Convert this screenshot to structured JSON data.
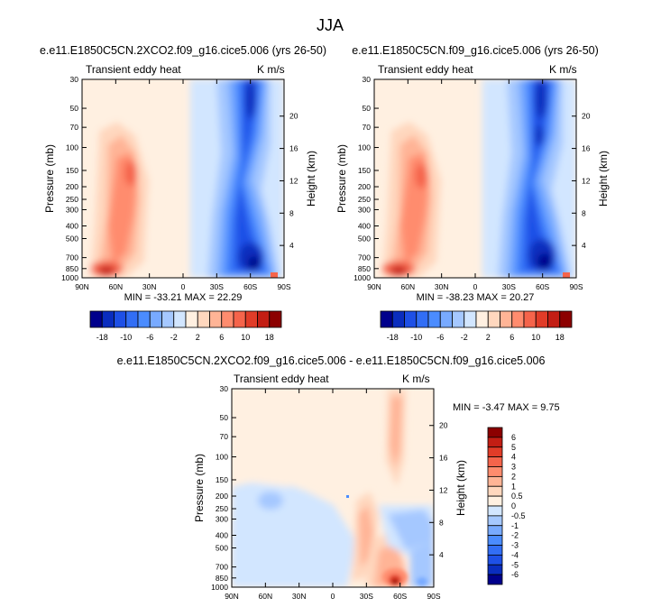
{
  "main_title": "JJA",
  "colors": {
    "map_17": [
      "#00008c",
      "#0a2dbe",
      "#1e50e6",
      "#326ef5",
      "#4b8cff",
      "#78aaff",
      "#a5c8ff",
      "#d2e6ff",
      "#fff0e1",
      "#ffd7be",
      "#ffb496",
      "#ff8c6e",
      "#f5644b",
      "#e13c28",
      "#c31e14",
      "#8c0000"
    ],
    "map_diff": [
      "#00008c",
      "#0a2dbe",
      "#1e50e6",
      "#326ef5",
      "#4b8cff",
      "#78aaff",
      "#a5c8ff",
      "#d2e6ff",
      "#fff0e1",
      "#ffd7be",
      "#ffb496",
      "#ff8c6e",
      "#f5644b",
      "#e13c28",
      "#c31e14",
      "#8c0000"
    ]
  },
  "chart_data": [
    {
      "type": "heatmap",
      "title": "e.e11.E1850C5CN.2XCO2.f09_g16.cice5.006 (yrs 26-50)",
      "subtitle_left": "Transient eddy heat",
      "subtitle_right": "K m/s",
      "ylabel": "Pressure (mb)",
      "ylabel_right": "Height (km)",
      "x_ticks": [
        "90N",
        "60N",
        "30N",
        "0",
        "30S",
        "60S",
        "90S"
      ],
      "y_ticks": [
        "30",
        "50",
        "70",
        "100",
        "150",
        "200",
        "250",
        "300",
        "400",
        "500",
        "700",
        "850",
        "1000"
      ],
      "height_ticks": [
        "20",
        "16",
        "12",
        "8",
        "4"
      ],
      "stats": {
        "min_label": "MIN =",
        "min": "-33.21",
        "max_label": "MAX =",
        "max": "22.29"
      },
      "colorbar_labels": [
        "-18",
        "-10",
        "-6",
        "-2",
        "2",
        "6",
        "10",
        "18"
      ]
    },
    {
      "type": "heatmap",
      "title": "e.e11.E1850C5CN.f09_g16.cice5.006 (yrs 26-50)",
      "subtitle_left": "Transient eddy heat",
      "subtitle_right": "K m/s",
      "ylabel": "Pressure (mb)",
      "ylabel_right": "Height (km)",
      "x_ticks": [
        "90N",
        "60N",
        "30N",
        "0",
        "30S",
        "60S",
        "90S"
      ],
      "y_ticks": [
        "30",
        "50",
        "70",
        "100",
        "150",
        "200",
        "250",
        "300",
        "400",
        "500",
        "700",
        "850",
        "1000"
      ],
      "height_ticks": [
        "20",
        "16",
        "12",
        "8",
        "4"
      ],
      "stats": {
        "min_label": "MIN =",
        "min": "-38.23",
        "max_label": "MAX =",
        "max": "20.27"
      },
      "colorbar_labels": [
        "-18",
        "-10",
        "-6",
        "-2",
        "2",
        "6",
        "10",
        "18"
      ]
    },
    {
      "type": "heatmap",
      "title": "e.e11.E1850C5CN.2XCO2.f09_g16.cice5.006 - e.e11.E1850C5CN.f09_g16.cice5.006",
      "subtitle_left": "Transient eddy heat",
      "subtitle_right": "K m/s",
      "ylabel": "Pressure (mb)",
      "ylabel_right": "Height (km)",
      "x_ticks": [
        "90N",
        "60N",
        "30N",
        "0",
        "30S",
        "60S",
        "90S"
      ],
      "y_ticks": [
        "30",
        "50",
        "70",
        "100",
        "150",
        "200",
        "250",
        "300",
        "400",
        "500",
        "700",
        "850",
        "1000"
      ],
      "height_ticks": [
        "20",
        "16",
        "12",
        "8",
        "4"
      ],
      "stats": {
        "min_label": "MIN =",
        "min": "-3.47",
        "max_label": "MAX =",
        "max": "9.75"
      },
      "colorbar_labels": [
        "6",
        "5",
        "4",
        "3",
        "2",
        "1",
        "0.5",
        "0",
        "-0.5",
        "-1",
        "-2",
        "-3",
        "-4",
        "-5",
        "-6"
      ]
    }
  ]
}
